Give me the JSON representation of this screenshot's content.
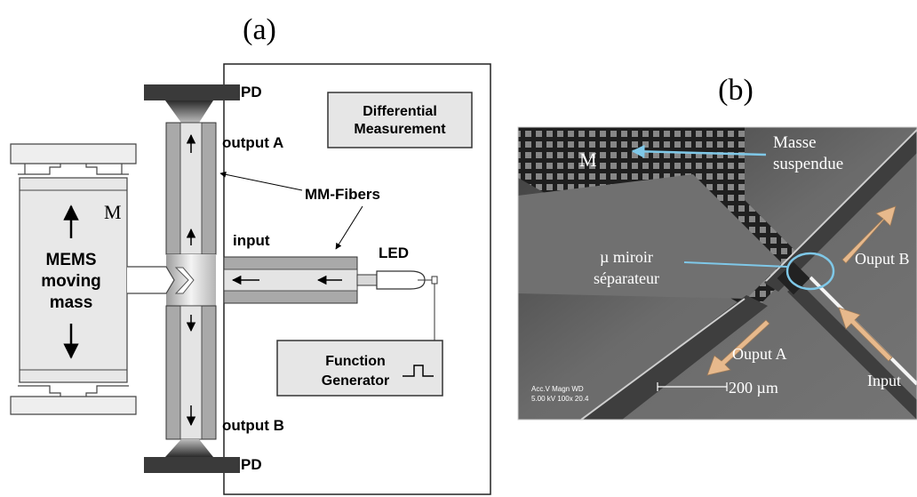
{
  "panel_a": {
    "label": "(a)",
    "pd_top": "PD",
    "pd_bottom": "PD",
    "diff_line1": "Differential",
    "diff_line2": "Measurement",
    "output_a": "output A",
    "output_b": "output B",
    "mm_fibers": "MM-Fibers",
    "input": "input",
    "led": "LED",
    "m_label": "M",
    "mems_line1": "MEMS",
    "mems_line2": "moving",
    "mems_line3": "mass",
    "func_line1": "Function",
    "func_line2": "Generator"
  },
  "panel_b": {
    "label": "(b)",
    "m_label": "M",
    "masse_line1": "Masse",
    "masse_line2": "suspendue",
    "miroir_line1": "µ miroir",
    "miroir_line2": "séparateur",
    "output_b": "Ouput B",
    "output_a": "Ouput A",
    "input": "Input",
    "scale": "200 µm",
    "sem_line1": "Acc.V  Magn   WD",
    "sem_line2": "5.00 kV 100x    20.4"
  },
  "colors": {
    "fiber_gray": "#a9a9a9",
    "fiber_light": "#e4e4e4",
    "pd_dark": "#3a3a3a",
    "panel_fill": "#e8e8e8",
    "sem_bg": "#6f6f6f",
    "highlight_blue": "#7fc8e8",
    "arrow_tan": "#e7b98c"
  }
}
